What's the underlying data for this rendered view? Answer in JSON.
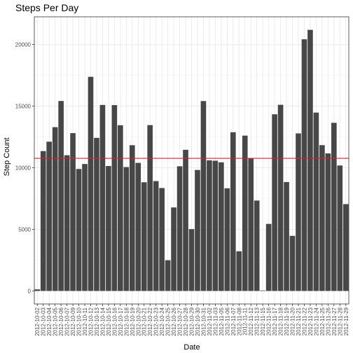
{
  "colors": {
    "bar": "#474747",
    "mean_line": "#d2213a",
    "panel_border": "#333333",
    "grid_major": "#ebebeb",
    "grid_minor": "#f5f5f5"
  },
  "chart_data": {
    "type": "bar",
    "title": "Steps Per Day",
    "xlabel": "Date",
    "ylabel": "Step Count",
    "ylim": [
      -1058,
      22252
    ],
    "yticks": [
      0,
      5000,
      10000,
      15000,
      20000
    ],
    "ytick_labels": [
      "0",
      "5000",
      "10000",
      "15000",
      "20000"
    ],
    "grid": true,
    "legend": "none",
    "mean_line": 10766,
    "categories": [
      "2012-10-02",
      "2012-10-03",
      "2012-10-04",
      "2012-10-05",
      "2012-10-06",
      "2012-10-07",
      "2012-10-09",
      "2012-10-10",
      "2012-10-11",
      "2012-10-12",
      "2012-10-13",
      "2012-10-14",
      "2012-10-15",
      "2012-10-16",
      "2012-10-17",
      "2012-10-18",
      "2012-10-19",
      "2012-10-20",
      "2012-10-21",
      "2012-10-22",
      "2012-10-23",
      "2012-10-24",
      "2012-10-25",
      "2012-10-26",
      "2012-10-27",
      "2012-10-28",
      "2012-10-29",
      "2012-10-30",
      "2012-10-31",
      "2012-11-02",
      "2012-11-03",
      "2012-11-05",
      "2012-11-06",
      "2012-11-07",
      "2012-11-08",
      "2012-11-11",
      "2012-11-12",
      "2012-11-13",
      "2012-11-15",
      "2012-11-16",
      "2012-11-17",
      "2012-11-18",
      "2012-11-19",
      "2012-11-20",
      "2012-11-21",
      "2012-11-22",
      "2012-11-23",
      "2012-11-24",
      "2012-11-25",
      "2012-11-26",
      "2012-11-27",
      "2012-11-28",
      "2012-11-29"
    ],
    "values": [
      126,
      11352,
      12116,
      13294,
      15420,
      11015,
      12811,
      9900,
      10304,
      17382,
      12426,
      15098,
      10139,
      15084,
      13452,
      10056,
      11829,
      10395,
      8821,
      13460,
      8918,
      8355,
      2492,
      6778,
      10119,
      11458,
      5018,
      9819,
      15414,
      10600,
      10571,
      10439,
      8334,
      12883,
      3219,
      12608,
      10765,
      7336,
      41,
      5441,
      14339,
      15110,
      8841,
      4472,
      12787,
      20427,
      21194,
      14478,
      11834,
      11162,
      13646,
      10183,
      7047
    ]
  }
}
